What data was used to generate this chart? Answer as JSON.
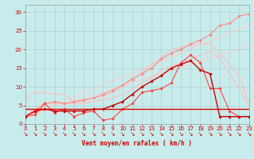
{
  "background_color": "#c8ecec",
  "grid_color": "#b0d0d0",
  "xlabel": "Vent moyen/en rafales ( km/h )",
  "x_ticks": [
    0,
    1,
    2,
    3,
    4,
    5,
    6,
    7,
    8,
    9,
    10,
    11,
    12,
    13,
    14,
    15,
    16,
    17,
    18,
    19,
    20,
    21,
    22,
    23
  ],
  "y_ticks": [
    0,
    5,
    10,
    15,
    20,
    25,
    30
  ],
  "ylim": [
    0,
    32
  ],
  "xlim": [
    0,
    23
  ],
  "lines": [
    {
      "x": [
        0,
        1,
        2,
        3,
        4,
        5,
        6,
        7,
        8,
        9,
        10,
        11,
        12,
        13,
        14,
        15,
        16,
        17,
        18,
        19,
        20,
        21,
        22,
        23
      ],
      "y": [
        6.5,
        8.5,
        8.5,
        8.0,
        8.0,
        6.0,
        6.0,
        7.0,
        7.5,
        8.5,
        10.0,
        12.5,
        14.0,
        16.0,
        18.0,
        20.0,
        20.5,
        21.0,
        21.5,
        21.5,
        19.0,
        16.0,
        13.0,
        6.0
      ],
      "color": "#ffbbbb",
      "marker": null,
      "lw": 0.8,
      "zorder": 2
    },
    {
      "x": [
        0,
        1,
        2,
        3,
        4,
        5,
        6,
        7,
        8,
        9,
        10,
        11,
        12,
        13,
        14,
        15,
        16,
        17,
        18,
        19,
        20,
        21,
        22,
        23
      ],
      "y": [
        2.0,
        4.0,
        5.5,
        5.5,
        5.5,
        5.5,
        5.5,
        6.0,
        6.5,
        7.0,
        8.0,
        9.5,
        11.0,
        12.5,
        14.5,
        15.5,
        16.5,
        17.5,
        18.5,
        19.5,
        17.5,
        13.5,
        9.5,
        5.0
      ],
      "color": "#ffbbbb",
      "marker": null,
      "lw": 0.8,
      "zorder": 2
    },
    {
      "x": [
        0,
        23
      ],
      "y": [
        2.0,
        26.5
      ],
      "color": "#ffcccc",
      "marker": null,
      "lw": 0.8,
      "zorder": 1
    },
    {
      "x": [
        0,
        23
      ],
      "y": [
        2.0,
        21.0
      ],
      "color": "#ffcccc",
      "marker": null,
      "lw": 0.8,
      "zorder": 1
    },
    {
      "x": [
        0,
        1,
        2,
        3,
        4,
        5,
        6,
        7,
        8,
        9,
        10,
        11,
        12,
        13,
        14,
        15,
        16,
        17,
        18,
        19,
        20,
        21,
        22,
        23
      ],
      "y": [
        2.0,
        3.5,
        5.5,
        6.0,
        5.5,
        6.0,
        6.5,
        7.0,
        8.0,
        9.0,
        10.5,
        12.0,
        13.5,
        15.0,
        17.5,
        19.0,
        20.0,
        21.5,
        22.5,
        24.0,
        26.5,
        27.0,
        29.0,
        29.5
      ],
      "color": "#ff8888",
      "marker": "D",
      "markersize": 1.8,
      "lw": 0.8,
      "zorder": 3
    },
    {
      "x": [
        0,
        1,
        2,
        3,
        4,
        5,
        6,
        7,
        8,
        9,
        10,
        11,
        12,
        13,
        14,
        15,
        16,
        17,
        18,
        19,
        20,
        21,
        22,
        23
      ],
      "y": [
        2.0,
        2.5,
        5.5,
        3.0,
        4.0,
        2.0,
        3.0,
        3.5,
        1.0,
        1.5,
        4.0,
        5.5,
        8.5,
        9.0,
        9.5,
        11.0,
        16.5,
        18.5,
        16.5,
        9.5,
        9.5,
        3.5,
        2.0,
        2.0
      ],
      "color": "#ff4444",
      "marker": "D",
      "markersize": 1.8,
      "lw": 0.8,
      "zorder": 4
    },
    {
      "x": [
        0,
        1,
        2,
        3,
        4,
        5,
        6,
        7,
        8,
        9,
        10,
        11,
        12,
        13,
        14,
        15,
        16,
        17,
        18,
        19,
        20,
        21,
        22,
        23
      ],
      "y": [
        2.0,
        3.5,
        4.0,
        3.5,
        3.5,
        3.5,
        3.5,
        4.0,
        4.0,
        5.0,
        6.0,
        8.0,
        10.0,
        11.5,
        13.0,
        15.0,
        16.0,
        17.0,
        14.5,
        13.5,
        2.0,
        2.0,
        2.0,
        2.0
      ],
      "color": "#cc0000",
      "marker": "D",
      "markersize": 1.8,
      "lw": 1.0,
      "zorder": 5
    },
    {
      "x": [
        0,
        23
      ],
      "y": [
        4.0,
        4.0
      ],
      "color": "#dd0000",
      "marker": null,
      "lw": 1.0,
      "zorder": 4
    }
  ],
  "arrow_symbol": "↘",
  "arrow_color": "#cc0000",
  "arrow_fontsize": 5.5,
  "tick_fontsize": 5,
  "xlabel_fontsize": 5.5,
  "xlabel_color": "#cc0000",
  "tick_color": "#cc0000"
}
